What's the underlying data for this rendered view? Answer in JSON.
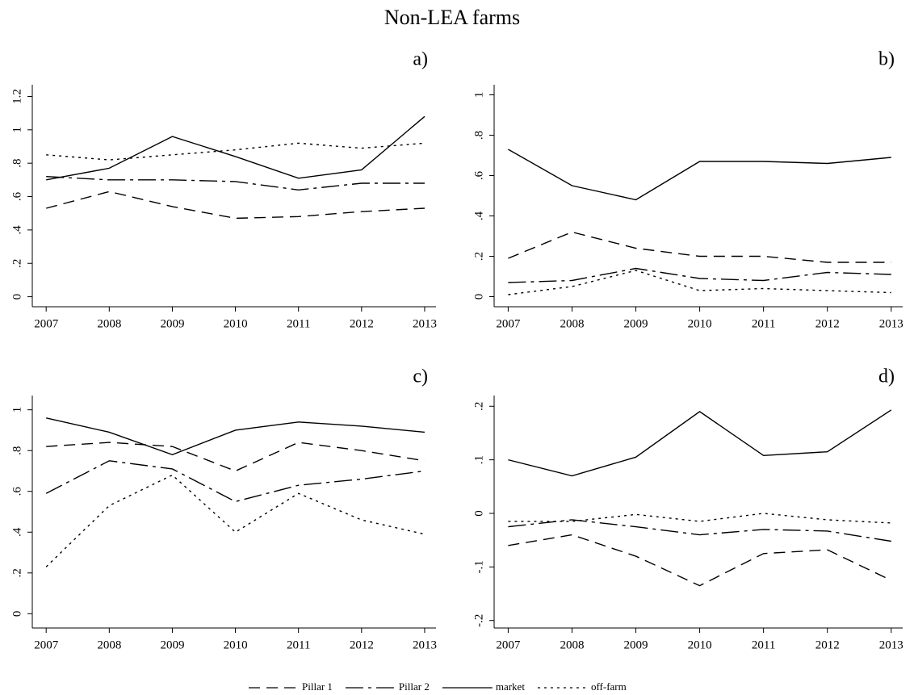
{
  "title": "Non-LEA farms",
  "chart_data": [
    {
      "type": "line",
      "title": "a)",
      "x": [
        2007,
        2008,
        2009,
        2010,
        2011,
        2012,
        2013
      ],
      "xlim": [
        2006.78,
        2013.18
      ],
      "xticks": [
        2007,
        2008,
        2009,
        2010,
        2011,
        2012,
        2013
      ],
      "ylim": [
        -0.06,
        1.27
      ],
      "yticks": [
        0,
        {
          "value": 0.2,
          "label": ".2"
        },
        {
          "value": 0.4,
          "label": ".4"
        },
        {
          "value": 0.6,
          "label": ".6"
        },
        {
          "value": 0.8,
          "label": ".8"
        },
        1,
        {
          "value": 1.2,
          "label": "1.2"
        }
      ],
      "series": [
        {
          "name": "Pillar 1",
          "color": "#000000",
          "style": "dash",
          "values": [
            0.53,
            0.63,
            0.54,
            0.47,
            0.48,
            0.51,
            0.53
          ]
        },
        {
          "name": "Pillar 2",
          "color": "#000000",
          "style": "longdash-dot",
          "values": [
            0.72,
            0.7,
            0.7,
            0.69,
            0.64,
            0.68,
            0.68
          ]
        },
        {
          "name": "market",
          "color": "#000000",
          "style": "solid",
          "values": [
            0.7,
            0.77,
            0.96,
            0.84,
            0.71,
            0.76,
            1.08
          ]
        },
        {
          "name": "off-farm",
          "color": "#000000",
          "style": "dot",
          "values": [
            0.85,
            0.82,
            0.85,
            0.88,
            0.92,
            0.89,
            0.92
          ]
        }
      ]
    },
    {
      "type": "line",
      "title": "b)",
      "x": [
        2007,
        2008,
        2009,
        2010,
        2011,
        2012,
        2013
      ],
      "xlim": [
        2006.78,
        2013.18
      ],
      "xticks": [
        2007,
        2008,
        2009,
        2010,
        2011,
        2012,
        2013
      ],
      "ylim": [
        -0.05,
        1.05
      ],
      "yticks": [
        0,
        {
          "value": 0.2,
          "label": ".2"
        },
        {
          "value": 0.4,
          "label": ".4"
        },
        {
          "value": 0.6,
          "label": ".6"
        },
        {
          "value": 0.8,
          "label": ".8"
        },
        1
      ],
      "series": [
        {
          "color": "#000000",
          "style": "dash",
          "values": [
            0.19,
            0.32,
            0.24,
            0.2,
            0.2,
            0.17,
            0.17
          ]
        },
        {
          "color": "#000000",
          "style": "longdash-dot",
          "values": [
            0.07,
            0.08,
            0.14,
            0.09,
            0.08,
            0.12,
            0.11
          ]
        },
        {
          "color": "#000000",
          "style": "solid",
          "values": [
            0.73,
            0.55,
            0.48,
            0.67,
            0.67,
            0.66,
            0.69
          ]
        },
        {
          "color": "#000000",
          "style": "dot",
          "values": [
            0.01,
            0.05,
            0.13,
            0.03,
            0.04,
            0.03,
            0.02
          ]
        }
      ]
    },
    {
      "type": "line",
      "title": "c)",
      "x": [
        2007,
        2008,
        2009,
        2010,
        2011,
        2012,
        2013
      ],
      "xlim": [
        2006.78,
        2013.18
      ],
      "xticks": [
        2007,
        2008,
        2009,
        2010,
        2011,
        2012,
        2013
      ],
      "ylim": [
        -0.07,
        1.07
      ],
      "yticks": [
        0,
        {
          "value": 0.2,
          "label": ".2"
        },
        {
          "value": 0.4,
          "label": ".4"
        },
        {
          "value": 0.6,
          "label": ".6"
        },
        {
          "value": 0.8,
          "label": ".8"
        },
        1
      ],
      "series": [
        {
          "color": "#000000",
          "style": "dash",
          "values": [
            0.82,
            0.84,
            0.82,
            0.7,
            0.84,
            0.8,
            0.75
          ]
        },
        {
          "color": "#000000",
          "style": "longdash-dot",
          "values": [
            0.59,
            0.75,
            0.71,
            0.55,
            0.63,
            0.66,
            0.7
          ]
        },
        {
          "color": "#000000",
          "style": "solid",
          "values": [
            0.96,
            0.89,
            0.78,
            0.9,
            0.94,
            0.92,
            0.89
          ]
        },
        {
          "color": "#000000",
          "style": "dot",
          "values": [
            0.23,
            0.53,
            0.68,
            0.4,
            0.59,
            0.46,
            0.39
          ]
        }
      ]
    },
    {
      "type": "line",
      "title": "d)",
      "x": [
        2007,
        2008,
        2009,
        2010,
        2011,
        2012,
        2013
      ],
      "xlim": [
        2006.78,
        2013.18
      ],
      "xticks": [
        2007,
        2008,
        2009,
        2010,
        2011,
        2012,
        2013
      ],
      "ylim": [
        -0.214,
        0.22
      ],
      "yticks": [
        {
          "value": -0.2,
          "label": "-.2"
        },
        {
          "value": -0.1,
          "label": "-.1"
        },
        0,
        {
          "value": 0.1,
          "label": ".1"
        },
        {
          "value": 0.2,
          "label": ".2"
        }
      ],
      "series": [
        {
          "color": "#000000",
          "style": "dash",
          "values": [
            -0.06,
            -0.04,
            -0.08,
            -0.135,
            -0.075,
            -0.068,
            -0.125
          ]
        },
        {
          "color": "#000000",
          "style": "longdash-dot",
          "values": [
            -0.025,
            -0.012,
            -0.025,
            -0.04,
            -0.03,
            -0.033,
            -0.052
          ]
        },
        {
          "color": "#000000",
          "style": "solid",
          "values": [
            0.1,
            0.07,
            0.105,
            0.19,
            0.108,
            0.115,
            0.193
          ]
        },
        {
          "color": "#000000",
          "style": "dot",
          "values": [
            -0.015,
            -0.015,
            -0.002,
            -0.015,
            0,
            -0.012,
            -0.018
          ]
        }
      ]
    }
  ]
}
